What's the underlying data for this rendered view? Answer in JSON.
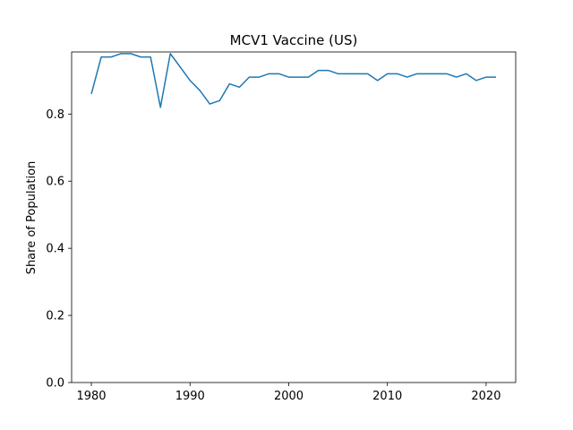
{
  "chart_data": {
    "type": "line",
    "title": "MCV1 Vaccine (US)",
    "xlabel": "",
    "ylabel": "Share of Population",
    "xlim": [
      1978,
      2023
    ],
    "ylim": [
      0,
      0.985
    ],
    "xticks": [
      1980,
      1990,
      2000,
      2010,
      2020
    ],
    "yticks": [
      0.0,
      0.2,
      0.4,
      0.6,
      0.8
    ],
    "xtick_labels": [
      "1980",
      "1990",
      "2000",
      "2010",
      "2020"
    ],
    "ytick_labels": [
      "0.0",
      "0.2",
      "0.4",
      "0.6",
      "0.8"
    ],
    "grid": false,
    "legend": false,
    "color": "#1f77b4",
    "series": [
      {
        "x": [
          1980,
          1981,
          1982,
          1983,
          1984,
          1985,
          1986,
          1987,
          1988,
          1989,
          1990,
          1991,
          1992,
          1993,
          1994,
          1995,
          1996,
          1997,
          1998,
          1999,
          2000,
          2001,
          2002,
          2003,
          2004,
          2005,
          2006,
          2007,
          2008,
          2009,
          2010,
          2011,
          2012,
          2013,
          2014,
          2015,
          2016,
          2017,
          2018,
          2019,
          2020,
          2021
        ],
        "values": [
          0.86,
          0.97,
          0.97,
          0.98,
          0.98,
          0.97,
          0.97,
          0.82,
          0.98,
          0.94,
          0.9,
          0.87,
          0.83,
          0.84,
          0.89,
          0.88,
          0.91,
          0.91,
          0.92,
          0.92,
          0.91,
          0.91,
          0.91,
          0.93,
          0.93,
          0.92,
          0.92,
          0.92,
          0.92,
          0.9,
          0.92,
          0.92,
          0.91,
          0.92,
          0.92,
          0.92,
          0.92,
          0.91,
          0.92,
          0.9,
          0.91,
          0.91
        ]
      }
    ]
  }
}
